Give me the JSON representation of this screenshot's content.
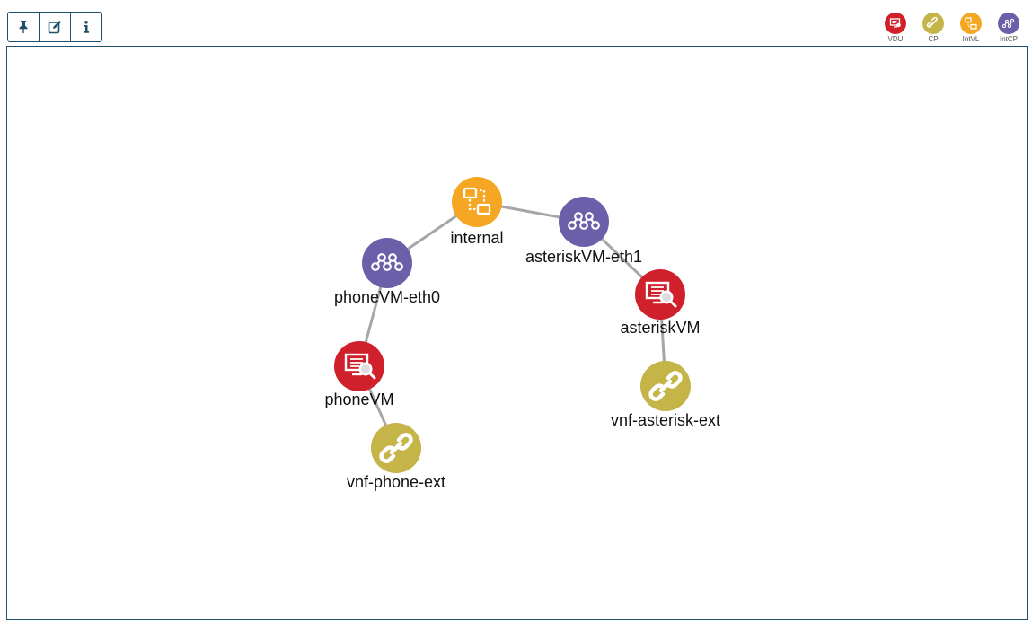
{
  "toolbar": {
    "buttons": [
      {
        "name": "pin-button",
        "icon": "pin-icon"
      },
      {
        "name": "edit-button",
        "icon": "edit-icon"
      },
      {
        "name": "info-button",
        "icon": "info-icon"
      }
    ]
  },
  "legend": [
    {
      "key": "vdu",
      "label": "VDU",
      "color": "#d0202b",
      "icon": "vdu-icon"
    },
    {
      "key": "cp",
      "label": "CP",
      "color": "#c5b447",
      "icon": "link-icon"
    },
    {
      "key": "intvl",
      "label": "IntVL",
      "color": "#f5a623",
      "icon": "intvl-icon"
    },
    {
      "key": "intcp",
      "label": "IntCP",
      "color": "#6a5fa8",
      "icon": "intcp-icon"
    }
  ],
  "graph": {
    "nodes": [
      {
        "id": "internal",
        "label": "internal",
        "type": "intvl"
      },
      {
        "id": "asteriskVM-eth1",
        "label": "asteriskVM-eth1",
        "type": "intcp"
      },
      {
        "id": "phoneVM-eth0",
        "label": "phoneVM-eth0",
        "type": "intcp"
      },
      {
        "id": "asteriskVM",
        "label": "asteriskVM",
        "type": "vdu"
      },
      {
        "id": "phoneVM",
        "label": "phoneVM",
        "type": "vdu"
      },
      {
        "id": "vnf-asterisk-ext",
        "label": "vnf-asterisk-ext",
        "type": "cp"
      },
      {
        "id": "vnf-phone-ext",
        "label": "vnf-phone-ext",
        "type": "cp"
      }
    ],
    "edges": [
      [
        "internal",
        "asteriskVM-eth1"
      ],
      [
        "internal",
        "phoneVM-eth0"
      ],
      [
        "asteriskVM-eth1",
        "asteriskVM"
      ],
      [
        "phoneVM-eth0",
        "phoneVM"
      ],
      [
        "asteriskVM",
        "vnf-asterisk-ext"
      ],
      [
        "phoneVM",
        "vnf-phone-ext"
      ]
    ]
  }
}
